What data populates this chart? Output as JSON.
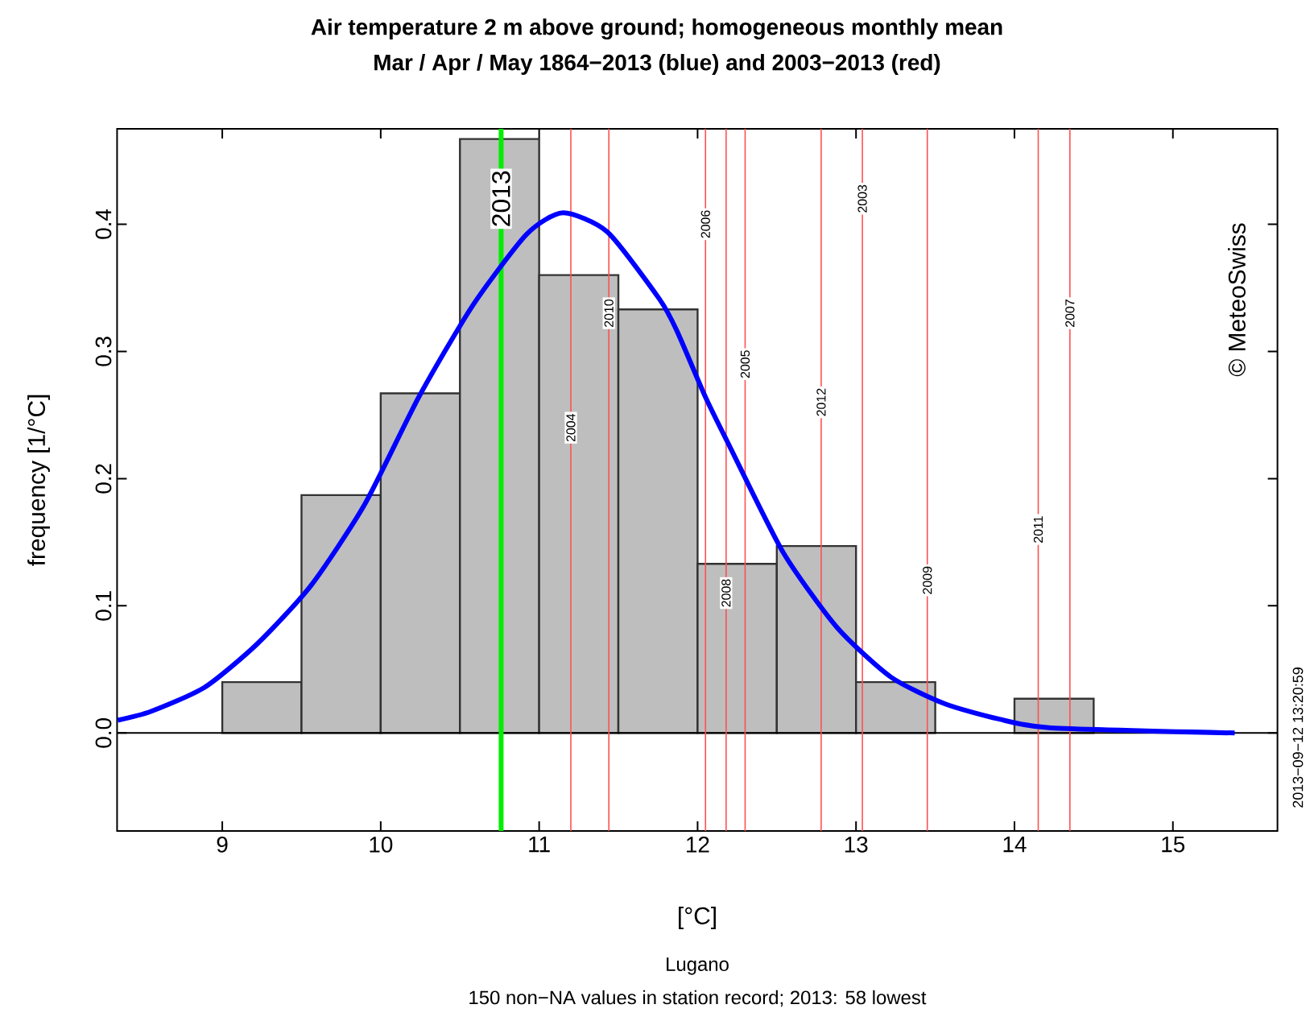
{
  "chart_data": {
    "type": "histogram",
    "title": "Air temperature 2 m above ground; homogeneous monthly mean",
    "subtitle": "Mar / Apr / May 1864−2013 (blue) and 2003−2013 (red)",
    "xlabel": "[°C]",
    "ylabel": "frequency [1/°C]",
    "bins": [
      9,
      9.5,
      10,
      10.5,
      11,
      11.5,
      12,
      12.5,
      13,
      13.5,
      14,
      14.5
    ],
    "values": [
      0.04,
      0.187,
      0.267,
      0.467,
      0.36,
      0.333,
      0.133,
      0.147,
      0.04,
      0,
      0.027
    ],
    "color": "#bebebe",
    "series": [
      {
        "type": "line",
        "color": "#0000ff",
        "x": [
          8.34,
          8.55,
          8.89,
          9.22,
          9.56,
          9.9,
          10.24,
          10.58,
          10.92,
          11.15,
          11.43,
          11.76,
          11.87,
          12.05,
          12.2,
          12.54,
          12.88,
          13.22,
          13.56,
          13.9,
          14.23,
          15.39
        ],
        "values": [
          0.01,
          0.017,
          0.036,
          0.07,
          0.116,
          0.18,
          0.264,
          0.336,
          0.392,
          0.409,
          0.394,
          0.341,
          0.316,
          0.264,
          0.226,
          0.142,
          0.083,
          0.044,
          0.023,
          0.011,
          0.004,
          0
        ]
      }
    ],
    "ref_lines": [
      {
        "axis": "x",
        "value": 10.76,
        "color": "#00ee00"
      },
      {
        "axis": "x",
        "value": 11.2,
        "color": "#ff5050"
      },
      {
        "axis": "x",
        "value": 11.44,
        "color": "#ff5050"
      },
      {
        "axis": "x",
        "value": 12.05,
        "color": "#ff5050"
      },
      {
        "axis": "x",
        "value": 12.18,
        "color": "#ff5050"
      },
      {
        "axis": "x",
        "value": 12.3,
        "color": "#ff5050"
      },
      {
        "axis": "x",
        "value": 12.78,
        "color": "#ff5050"
      },
      {
        "axis": "x",
        "value": 13.04,
        "color": "#ff5050"
      },
      {
        "axis": "x",
        "value": 13.45,
        "color": "#ff5050"
      },
      {
        "axis": "x",
        "value": 14.15,
        "color": "#ff5050"
      },
      {
        "axis": "x",
        "value": 14.35,
        "color": "#ff5050"
      }
    ],
    "xlim": [
      8.336,
      15.66
    ],
    "ylim": [
      -0.077,
      0.475
    ],
    "xticks": [
      9,
      10,
      11,
      12,
      13,
      14,
      15
    ],
    "yticks": [
      {
        "value": 0,
        "label": "0.0"
      },
      0.1,
      0.2,
      0.3,
      0.4
    ],
    "annotations": [
      "Lugano",
      "150 non−NA values in station record; 2013: 58 lowest",
      "© MeteoSwiss",
      "2013−09−12 13:20:59",
      {
        "text": "2013",
        "x": 10.76,
        "y": 0.42
      },
      {
        "text": "2004",
        "x": 11.2,
        "y": 0.24
      },
      {
        "text": "2010",
        "x": 11.44,
        "y": 0.33
      },
      {
        "text": "2006",
        "x": 12.05,
        "y": 0.4
      },
      {
        "text": "2008",
        "x": 12.18,
        "y": 0.11
      },
      {
        "text": "2005",
        "x": 12.3,
        "y": 0.29
      },
      {
        "text": "2012",
        "x": 12.78,
        "y": 0.26
      },
      {
        "text": "2003",
        "x": 13.04,
        "y": 0.42
      },
      {
        "text": "2009",
        "x": 13.45,
        "y": 0.12
      },
      {
        "text": "2011",
        "x": 14.15,
        "y": 0.16
      },
      {
        "text": "2007",
        "x": 14.35,
        "y": 0.33
      }
    ]
  }
}
